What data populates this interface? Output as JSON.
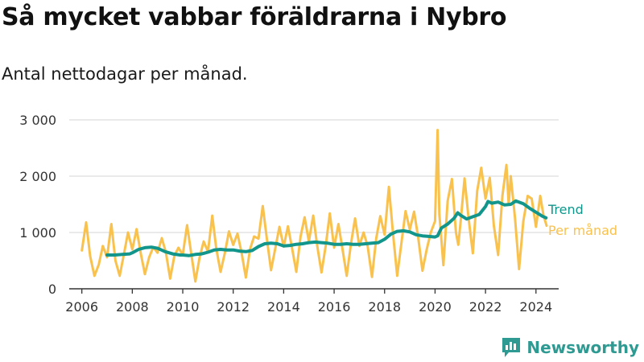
{
  "title": "Så mycket vabbar föräldrarna i Nybro",
  "subtitle": "Antal nettodagar per månad.",
  "brand": {
    "name": "Newsworthy",
    "icon": "newsworthy-logo-icon"
  },
  "colors": {
    "monthly": "#f9c24e",
    "trend": "#12958a",
    "grid": "#dddddd",
    "axis": "#333333"
  },
  "chart_data": {
    "type": "line",
    "title": "Så mycket vabbar föräldrarna i Nybro",
    "subtitle": "Antal nettodagar per månad.",
    "xlabel": "",
    "ylabel": "",
    "xlim": [
      2005.5,
      2024.9
    ],
    "ylim": [
      0,
      3000
    ],
    "yticks": [
      0,
      1000,
      2000,
      3000
    ],
    "ytick_labels": [
      "0",
      "1 000",
      "2 000",
      "3 000"
    ],
    "xticks": [
      2006,
      2008,
      2010,
      2012,
      2014,
      2016,
      2018,
      2020,
      2022,
      2024
    ],
    "xtick_labels": [
      "2006",
      "2008",
      "2010",
      "2012",
      "2014",
      "2016",
      "2018",
      "2020",
      "2022",
      "2024"
    ],
    "grid": true,
    "legend": "right-end labels",
    "series": [
      {
        "name": "Trend",
        "x": [
          2007.0,
          2007.3,
          2007.6,
          2007.9,
          2008.0,
          2008.25,
          2008.5,
          2008.75,
          2009.0,
          2009.3,
          2009.6,
          2009.9,
          2010.0,
          2010.25,
          2010.5,
          2010.75,
          2011.0,
          2011.25,
          2011.5,
          2011.75,
          2012.0,
          2012.25,
          2012.5,
          2012.75,
          2013.0,
          2013.25,
          2013.5,
          2013.75,
          2014.0,
          2014.25,
          2014.5,
          2014.75,
          2015.0,
          2015.25,
          2015.5,
          2015.75,
          2016.0,
          2016.25,
          2016.5,
          2016.75,
          2017.0,
          2017.25,
          2017.5,
          2017.75,
          2018.0,
          2018.25,
          2018.5,
          2018.75,
          2019.0,
          2019.25,
          2019.5,
          2019.75,
          2020.0,
          2020.1,
          2020.25,
          2020.5,
          2020.75,
          2020.9,
          2021.0,
          2021.25,
          2021.5,
          2021.75,
          2022.0,
          2022.1,
          2022.25,
          2022.5,
          2022.75,
          2023.0,
          2023.2,
          2023.5,
          2023.75,
          2024.0,
          2024.25,
          2024.4
        ],
        "values": [
          600,
          600,
          610,
          620,
          640,
          700,
          730,
          740,
          720,
          660,
          620,
          600,
          600,
          590,
          610,
          620,
          650,
          690,
          700,
          690,
          690,
          670,
          660,
          680,
          750,
          800,
          810,
          800,
          760,
          770,
          790,
          800,
          820,
          830,
          820,
          810,
          790,
          790,
          800,
          790,
          790,
          800,
          810,
          820,
          880,
          970,
          1020,
          1030,
          1010,
          960,
          940,
          930,
          920,
          940,
          1080,
          1150,
          1250,
          1350,
          1310,
          1240,
          1280,
          1320,
          1460,
          1550,
          1520,
          1540,
          1490,
          1500,
          1560,
          1510,
          1430,
          1360,
          1290,
          1260
        ]
      },
      {
        "name": "Per månad",
        "x": [
          2006.0,
          2006.17,
          2006.33,
          2006.5,
          2006.67,
          2006.83,
          2007.0,
          2007.17,
          2007.33,
          2007.5,
          2007.67,
          2007.83,
          2008.0,
          2008.17,
          2008.33,
          2008.5,
          2008.67,
          2008.83,
          2009.0,
          2009.17,
          2009.33,
          2009.5,
          2009.67,
          2009.83,
          2010.0,
          2010.17,
          2010.33,
          2010.5,
          2010.67,
          2010.83,
          2011.0,
          2011.17,
          2011.33,
          2011.5,
          2011.67,
          2011.83,
          2012.0,
          2012.17,
          2012.33,
          2012.5,
          2012.67,
          2012.83,
          2013.0,
          2013.17,
          2013.33,
          2013.5,
          2013.67,
          2013.83,
          2014.0,
          2014.17,
          2014.33,
          2014.5,
          2014.67,
          2014.83,
          2015.0,
          2015.17,
          2015.33,
          2015.5,
          2015.67,
          2015.83,
          2016.0,
          2016.17,
          2016.33,
          2016.5,
          2016.67,
          2016.83,
          2017.0,
          2017.17,
          2017.33,
          2017.5,
          2017.67,
          2017.83,
          2018.0,
          2018.17,
          2018.33,
          2018.5,
          2018.67,
          2018.83,
          2019.0,
          2019.17,
          2019.33,
          2019.5,
          2019.67,
          2019.83,
          2020.0,
          2020.1,
          2020.17,
          2020.33,
          2020.5,
          2020.67,
          2020.83,
          2020.92,
          2021.0,
          2021.17,
          2021.33,
          2021.5,
          2021.67,
          2021.83,
          2022.0,
          2022.17,
          2022.33,
          2022.5,
          2022.67,
          2022.83,
          2022.92,
          2023.0,
          2023.17,
          2023.33,
          2023.5,
          2023.67,
          2023.83,
          2024.0,
          2024.17,
          2024.3,
          2024.42
        ],
        "values": [
          680,
          1180,
          580,
          230,
          430,
          760,
          560,
          1150,
          500,
          230,
          620,
          1000,
          700,
          1060,
          640,
          260,
          560,
          740,
          640,
          900,
          650,
          180,
          590,
          730,
          600,
          1130,
          640,
          130,
          560,
          840,
          660,
          1300,
          710,
          300,
          640,
          1020,
          780,
          980,
          640,
          200,
          710,
          930,
          890,
          1470,
          900,
          330,
          720,
          1100,
          750,
          1110,
          730,
          300,
          930,
          1270,
          840,
          1300,
          760,
          290,
          770,
          1340,
          730,
          1150,
          710,
          230,
          810,
          1250,
          760,
          1000,
          750,
          210,
          900,
          1290,
          960,
          1810,
          1000,
          230,
          830,
          1380,
          1050,
          1370,
          920,
          320,
          700,
          1000,
          1200,
          2820,
          1320,
          420,
          1560,
          1950,
          1000,
          780,
          1130,
          1960,
          1250,
          630,
          1740,
          2150,
          1600,
          1970,
          1120,
          600,
          1650,
          2200,
          1500,
          2000,
          1250,
          350,
          1200,
          1650,
          1600,
          1100,
          1650,
          1300,
          1120
        ]
      }
    ]
  }
}
